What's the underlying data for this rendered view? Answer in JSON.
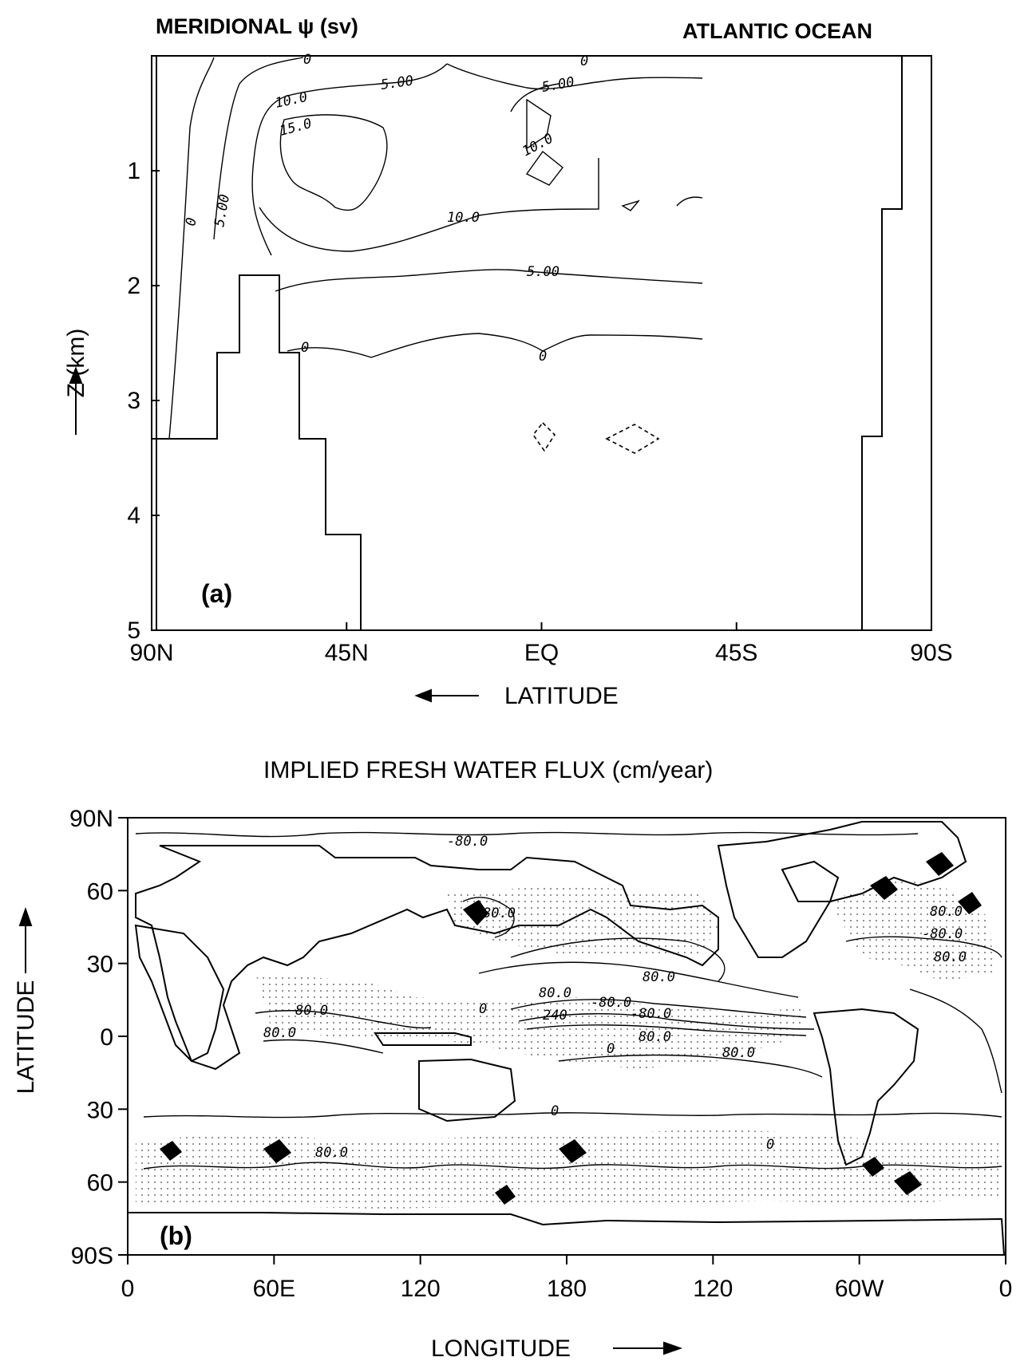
{
  "chart_data": [
    {
      "type": "contour",
      "title": "MERIDIONAL ψ (sv)",
      "subtitle": "ATLANTIC OCEAN",
      "xlabel": "LATITUDE",
      "ylabel": "Z (km)",
      "x_ticks": [
        "90N",
        "45N",
        "EQ",
        "45S",
        "90S"
      ],
      "y_ticks": [
        "1",
        "2",
        "3",
        "4",
        "5"
      ],
      "ylim": [
        0,
        5
      ],
      "panel_label": "(a)",
      "contour_labels": [
        "10.0",
        "5.00",
        "15.0",
        "5.00",
        "10.0",
        "5.00",
        "0",
        "5.00",
        "10.0",
        "0",
        "0",
        "0",
        "0"
      ],
      "contour_values": [
        15.0,
        10.0,
        5.0,
        0
      ]
    },
    {
      "type": "contour",
      "title": "IMPLIED FRESH WATER FLUX (cm/year)",
      "xlabel": "LONGITUDE",
      "ylabel": "LATITUDE",
      "x_ticks": [
        "0",
        "60E",
        "120",
        "180",
        "120",
        "60W",
        "0"
      ],
      "y_ticks": [
        "90N",
        "60",
        "30",
        "0",
        "30",
        "60",
        "90S"
      ],
      "panel_label": "(b)",
      "contour_labels": [
        "80.0",
        "80.0",
        "80.0",
        "-80.0",
        "-80.0",
        "80.0",
        "80.0",
        "80.0",
        "80.0",
        "-80.0",
        "240",
        "-80.0",
        "80.0",
        "80.0",
        "80.0",
        "0",
        "0",
        "0",
        "0"
      ],
      "contour_values": [
        -80,
        0,
        80,
        240
      ]
    }
  ]
}
